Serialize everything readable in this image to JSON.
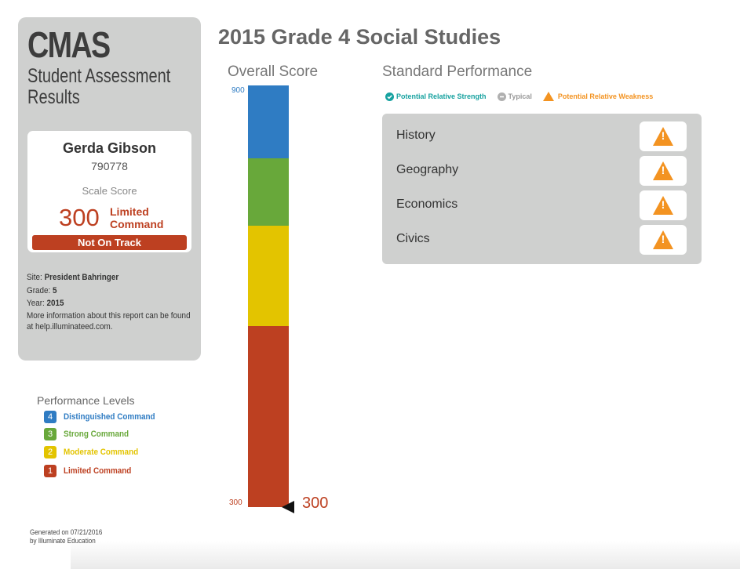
{
  "report": {
    "brand": "CMAS",
    "subtitle": "Student Assessment Results",
    "page_title": "2015 Grade 4 Social Studies"
  },
  "student": {
    "name": "Gerda Gibson",
    "id": "790778",
    "scale_score_label": "Scale Score",
    "scale_score": "300",
    "level_name": "Limited Command",
    "track_status": "Not On Track"
  },
  "meta": {
    "site_label": "Site:",
    "site": "President Bahringer",
    "grade_label": "Grade:",
    "grade": "5",
    "year_label": "Year:",
    "year": "2015",
    "info": "More information about this report can be found at help.illuminateed.com."
  },
  "performance_levels": {
    "title": "Performance Levels",
    "levels": [
      {
        "num": "4",
        "name": "Distinguished Command",
        "color": "#2f7cc3"
      },
      {
        "num": "3",
        "name": "Strong Command",
        "color": "#68a83a"
      },
      {
        "num": "2",
        "name": "Moderate Command",
        "color": "#e3c400"
      },
      {
        "num": "1",
        "name": "Limited Command",
        "color": "#bd4021"
      }
    ]
  },
  "overall": {
    "title": "Overall Score",
    "axis_max": "900",
    "axis_min": "300",
    "score_label": "300",
    "score_fraction": 0.0
  },
  "standards": {
    "title": "Standard Performance",
    "legend": [
      {
        "label": "Potential Relative Strength",
        "color": "#17a2a0",
        "icon": "check-circle-icon"
      },
      {
        "label": "Typical",
        "color": "#b0b0b0",
        "icon": "minus-circle-icon"
      },
      {
        "label": "Potential Relative Weakness",
        "color": "#f39321",
        "icon": "warning-icon"
      }
    ],
    "items": [
      {
        "name": "History",
        "status": "warning-icon"
      },
      {
        "name": "Geography",
        "status": "warning-icon"
      },
      {
        "name": "Economics",
        "status": "warning-icon"
      },
      {
        "name": "Civics",
        "status": "warning-icon"
      }
    ]
  },
  "footer": {
    "generated": "Generated on 07/21/2016",
    "by": "by Illuminate Education"
  }
}
